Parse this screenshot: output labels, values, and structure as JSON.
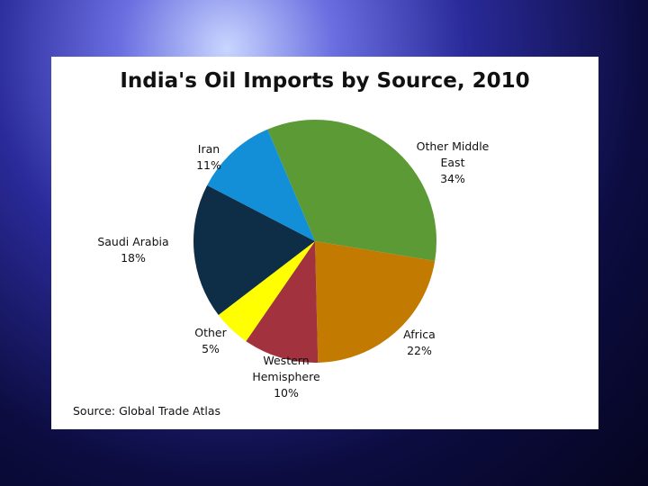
{
  "chart_data": {
    "type": "pie",
    "title": "India's Oil Imports by Source, 2010",
    "source": "Source: Global Trade Atlas",
    "categories": [
      "Other Middle East",
      "Africa",
      "Western Hemisphere",
      "Other",
      "Saudi Arabia",
      "Iran"
    ],
    "values": [
      34,
      22,
      10,
      5,
      18,
      11
    ],
    "value_labels": [
      "34%",
      "22%",
      "10%",
      "5%",
      "18%",
      "11%"
    ],
    "colors": [
      "#5b9a35",
      "#c27a00",
      "#a2323e",
      "#ffff00",
      "#0e2d47",
      "#128fd6"
    ]
  }
}
